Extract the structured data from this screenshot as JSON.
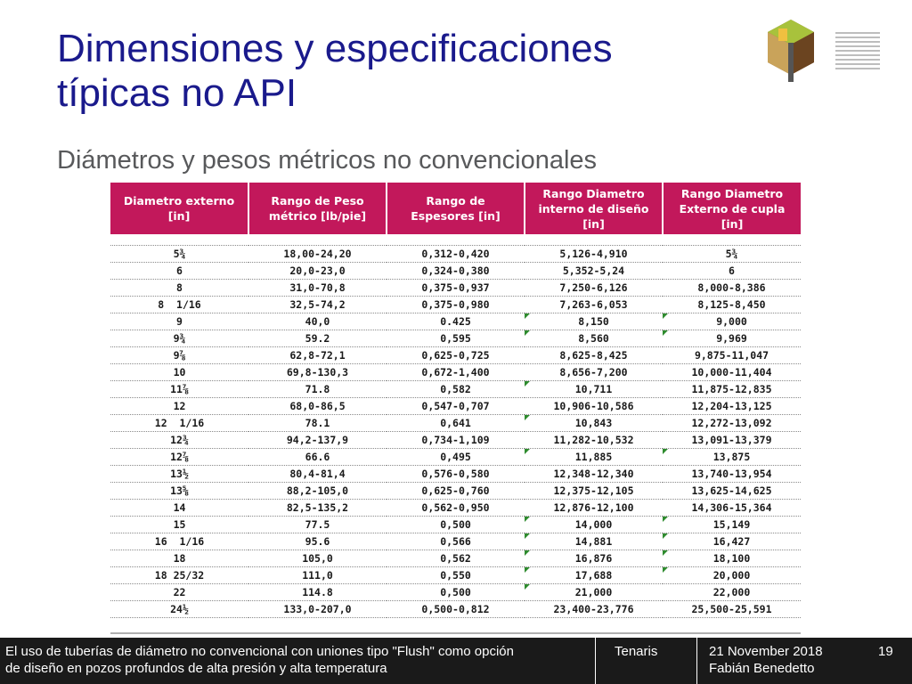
{
  "slide": {
    "title_line1": "Dimensiones y especificaciones",
    "title_line2": "típicas no API",
    "subtitle": "Diámetros y pesos métricos no convencionales"
  },
  "colors": {
    "title": "#1a1a8c",
    "header_bg": "#c2185b",
    "footer_bg": "#1a1a1a",
    "flag": "#2e8b2e"
  },
  "table": {
    "headers": [
      [
        "Diametro externo",
        "[in]",
        ""
      ],
      [
        "Rango de Peso",
        "métrico [lb/pie]",
        ""
      ],
      [
        "Rango de",
        "Espesores [in]",
        ""
      ],
      [
        "Rango Diametro",
        "interno de diseño",
        "[in]"
      ],
      [
        "Rango Diametro",
        "Externo de cupla",
        "[in]"
      ]
    ],
    "rows": [
      [
        "5¾",
        "18,00-24,20",
        "0,312-0,420",
        "5,126-4,910",
        "5¾"
      ],
      [
        "6",
        "20,0-23,0",
        "0,324-0,380",
        "5,352-5,24",
        "6"
      ],
      [
        "8",
        "31,0-70,8",
        "0,375-0,937",
        "7,250-6,126",
        "8,000-8,386"
      ],
      [
        "8  1/16",
        "32,5-74,2",
        "0,375-0,980",
        "7,263-6,053",
        "8,125-8,450"
      ],
      [
        "9",
        "40,0",
        "0.425",
        "8,150",
        "9,000"
      ],
      [
        "9¾",
        "59.2",
        "0,595",
        "8,560",
        "9,969"
      ],
      [
        "9⅞",
        "62,8-72,1",
        "0,625-0,725",
        "8,625-8,425",
        "9,875-11,047"
      ],
      [
        "10",
        "69,8-130,3",
        "0,672-1,400",
        "8,656-7,200",
        "10,000-11,404"
      ],
      [
        "11⅞",
        "71.8",
        "0,582",
        "10,711",
        "11,875-12,835"
      ],
      [
        "12",
        "68,0-86,5",
        "0,547-0,707",
        "10,906-10,586",
        "12,204-13,125"
      ],
      [
        "12  1/16",
        "78.1",
        "0,641",
        "10,843",
        "12,272-13,092"
      ],
      [
        "12¾",
        "94,2-137,9",
        "0,734-1,109",
        "11,282-10,532",
        "13,091-13,379"
      ],
      [
        "12⅞",
        "66.6",
        "0,495",
        "11,885",
        "13,875"
      ],
      [
        "13½",
        "80,4-81,4",
        "0,576-0,580",
        "12,348-12,340",
        "13,740-13,954"
      ],
      [
        "13⅝",
        "88,2-105,0",
        "0,625-0,760",
        "12,375-12,105",
        "13,625-14,625"
      ],
      [
        "14",
        "82,5-135,2",
        "0,562-0,950",
        "12,876-12,100",
        "14,306-15,364"
      ],
      [
        "15",
        "77.5",
        "0,500",
        "14,000",
        "15,149"
      ],
      [
        "16  1/16",
        "95.6",
        "0,566",
        "14,881",
        "16,427"
      ],
      [
        "18",
        "105,0",
        "0,562",
        "16,876",
        "18,100"
      ],
      [
        "18 25/32",
        "111,0",
        "0,550",
        "17,688",
        "20,000"
      ],
      [
        "22",
        "114.8",
        "0,500",
        "21,000",
        "22,000"
      ],
      [
        "24½",
        "133,0-207,0",
        "0,500-0,812",
        "23,400-23,776",
        "25,500-25,591"
      ]
    ]
  },
  "footer": {
    "description_line1": "El uso de tuberías de diámetro no convencional con uniones tipo \"Flush\" como opción",
    "description_line2": "de diseño en pozos profundos de alta presión y alta temperatura",
    "company": "Tenaris",
    "date": "21 November 2018",
    "author": "Fabián Benedetto",
    "page": "19"
  }
}
